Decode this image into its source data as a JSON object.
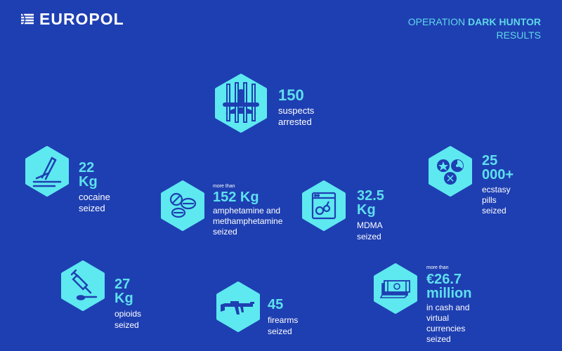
{
  "header": {
    "logo": "EUROPOL",
    "operation_prefix": "OPERATION",
    "operation_name": "DARK HUNTOR",
    "operation_suffix": "RESULTS"
  },
  "colors": {
    "background": "#1e3fb2",
    "accent": "#5ee0ee",
    "hexagon": "#5ee8f0",
    "icon": "#1e3fb2"
  },
  "stats": {
    "suspects": {
      "value": "150",
      "label": "suspects arrested",
      "icon": "prison-bars-icon"
    },
    "cocaine": {
      "value": "22 Kg",
      "label": "cocaine seized",
      "icon": "cocaine-icon"
    },
    "ecstasy": {
      "value": "25 000+",
      "label": "ecstasy pills",
      "label2": "seized",
      "icon": "pills-icon"
    },
    "amphetamine": {
      "prefix": "more than",
      "value": "152 Kg",
      "line1": "amphetamine and",
      "line2": "methamphetamine",
      "line3": "seized",
      "icon": "tablets-icon"
    },
    "mdma": {
      "value": "32.5 Kg",
      "label": "MDMA seized",
      "icon": "mdma-icon"
    },
    "opioids": {
      "value": "27 Kg",
      "label": "opioids seized",
      "icon": "syringe-icon"
    },
    "firearms": {
      "value": "45",
      "label": "firearms seized",
      "icon": "rifle-icon"
    },
    "cash": {
      "prefix": "more than",
      "value": "€26.7 million",
      "line1": "in cash and virtual",
      "line2": "currencies seized",
      "icon": "cash-icon"
    }
  }
}
